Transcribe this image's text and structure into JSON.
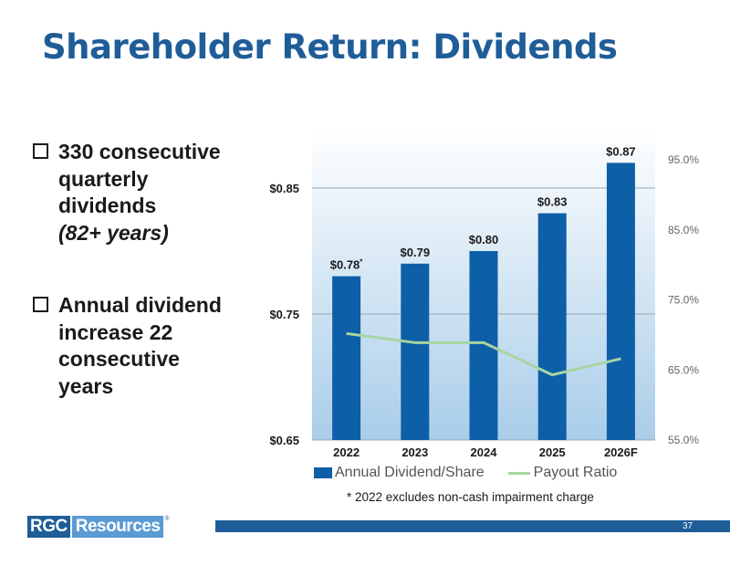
{
  "title": "Shareholder Return: Dividends",
  "bullets": [
    {
      "lines": [
        "330 consecutive",
        "quarterly",
        "dividends"
      ],
      "sub": "(82+ years)"
    },
    {
      "lines": [
        "Annual dividend",
        "increase 22",
        "consecutive",
        "years"
      ],
      "sub": ""
    }
  ],
  "chart_data": {
    "type": "bar",
    "categories": [
      "2022",
      "2023",
      "2024",
      "2025",
      "2026F"
    ],
    "series": [
      {
        "name": "Annual Dividend/Share",
        "type": "bar",
        "axis": "left",
        "values": [
          0.78,
          0.79,
          0.8,
          0.83,
          0.87
        ],
        "labels": [
          "$0.78",
          "$0.79",
          "$0.80",
          "$0.83",
          "$0.87"
        ],
        "label_marks": [
          "*",
          "",
          "",
          "",
          ""
        ],
        "color": "#0d5fa8"
      },
      {
        "name": "Payout Ratio",
        "type": "line",
        "axis": "right",
        "values": [
          70.2,
          68.9,
          68.9,
          64.3,
          66.6
        ],
        "color": "#a8d5a0"
      }
    ],
    "y_left": {
      "min": 0.65,
      "max": 0.85,
      "ticks": [
        "$0.65",
        "$0.75",
        "$0.85"
      ],
      "tick_values": [
        0.65,
        0.75,
        0.85
      ]
    },
    "y_right": {
      "min": 55,
      "max": 95,
      "ticks": [
        "55.0%",
        "65.0%",
        "75.0%",
        "85.0%",
        "95.0%"
      ],
      "tick_values": [
        55,
        65,
        75,
        85,
        95
      ]
    },
    "grid": true,
    "legend_position": "bottom",
    "title": "",
    "xlabel": "",
    "ylabel": ""
  },
  "footnote": "* 2022 excludes non-cash impairment charge",
  "logo": {
    "left": "RGC",
    "right": "Resources",
    "mark": "®"
  },
  "page_number": "37",
  "colors": {
    "title": "#1f5d99",
    "bar": "#0d5fa8",
    "line": "#a8d5a0",
    "footer": "#1f5d99"
  }
}
